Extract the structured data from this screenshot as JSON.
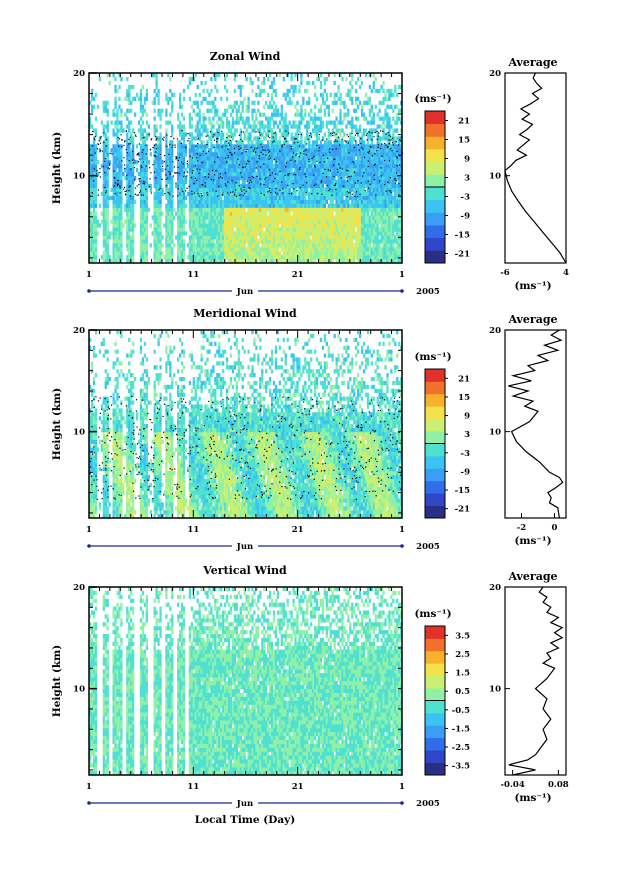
{
  "figure": {
    "xlabel": "Local Time (Day)",
    "month_label": "Jun",
    "year_label": "2005",
    "x_ticks": [
      "1",
      "11",
      "21",
      "1"
    ],
    "colorbar_unit": "(ms⁻¹)",
    "avg_unit": "(ms⁻¹)",
    "avg_title": "Average",
    "ylabel": "Height (km)"
  },
  "chart_data": [
    {
      "type": "heatmap",
      "title": "Zonal Wind",
      "ylabel": "Height (km)",
      "xlabel": "Jun",
      "xlim": [
        1,
        31
      ],
      "ylim": [
        1.5,
        20
      ],
      "y_ticks": [
        "10",
        "20"
      ],
      "colorbar": {
        "unit": "(ms⁻¹)",
        "range": [
          -24,
          24
        ],
        "ticks": [
          "21",
          "15",
          "9",
          "3",
          "-3",
          "-9",
          "-15",
          "-21"
        ]
      },
      "colors": [
        "#2a2f86",
        "#3046c8",
        "#2f6ee6",
        "#3a9ef5",
        "#39c4f2",
        "#4fe0d2",
        "#8ff0a8",
        "#c9f070",
        "#f3e34a",
        "#f8b12c",
        "#f0722a",
        "#e0322a"
      ],
      "profile": {
        "title": "Average",
        "xlim": [
          -6,
          4
        ],
        "x_ticks": [
          "-6",
          "4"
        ],
        "unit": "(ms⁻¹)",
        "heights": [
          1.5,
          2.5,
          3.5,
          4.5,
          5.5,
          6.5,
          7.5,
          8.5,
          9.5,
          10.5,
          11.0,
          11.5,
          12.0,
          12.5,
          13.0,
          13.5,
          14.0,
          14.5,
          15.0,
          15.5,
          16.0,
          16.5,
          17.0,
          17.5,
          18.0,
          18.5,
          19.0,
          19.5,
          20.0
        ],
        "values": [
          4.0,
          3.0,
          1.6,
          0.2,
          -1.2,
          -2.6,
          -3.8,
          -4.9,
          -5.6,
          -6.0,
          -5.0,
          -4.2,
          -2.5,
          -4.0,
          -3.0,
          -2.0,
          -3.6,
          -2.4,
          -1.5,
          -3.2,
          -2.0,
          -3.4,
          -1.8,
          -0.5,
          -1.5,
          0.0,
          -0.8,
          -1.4,
          -1.0
        ]
      }
    },
    {
      "type": "heatmap",
      "title": "Meridional Wind",
      "ylabel": "Height (km)",
      "xlabel": "Jun",
      "xlim": [
        1,
        31
      ],
      "ylim": [
        1.5,
        20
      ],
      "y_ticks": [
        "10",
        "20"
      ],
      "colorbar": {
        "unit": "(ms⁻¹)",
        "range": [
          -24,
          24
        ],
        "ticks": [
          "21",
          "15",
          "9",
          "3",
          "-3",
          "-9",
          "-15",
          "-21"
        ]
      },
      "colors": [
        "#2a2f86",
        "#3046c8",
        "#2f6ee6",
        "#3a9ef5",
        "#39c4f2",
        "#4fe0d2",
        "#8ff0a8",
        "#c9f070",
        "#f3e34a",
        "#f8b12c",
        "#f0722a",
        "#e0322a"
      ],
      "profile": {
        "title": "Average",
        "xlim": [
          -3,
          0.7
        ],
        "x_ticks": [
          "-2",
          "0"
        ],
        "unit": "(ms⁻¹)",
        "heights": [
          1.5,
          2.5,
          3.0,
          3.5,
          4.0,
          4.5,
          5.0,
          5.5,
          6.0,
          7.0,
          8.0,
          9.0,
          10.0,
          11.0,
          12.0,
          12.5,
          13.0,
          13.5,
          14.0,
          14.5,
          15.0,
          15.5,
          16.0,
          16.5,
          17.0,
          17.5,
          18.0,
          18.5,
          19.0,
          19.5,
          20.0
        ],
        "values": [
          0.3,
          0.2,
          -0.3,
          -0.2,
          -0.4,
          0.1,
          0.5,
          0.3,
          -0.3,
          -0.9,
          -1.7,
          -2.3,
          -2.6,
          -1.5,
          -1.0,
          -1.8,
          -1.3,
          -2.5,
          -1.6,
          -2.8,
          -1.4,
          -2.5,
          -1.2,
          -1.6,
          -0.4,
          -1.0,
          0.2,
          -0.6,
          0.4,
          -0.2,
          0.3
        ]
      }
    },
    {
      "type": "heatmap",
      "title": "Vertical Wind",
      "ylabel": "Height (km)",
      "xlabel": "Jun",
      "xlim": [
        1,
        31
      ],
      "ylim": [
        1.5,
        20
      ],
      "y_ticks": [
        "10",
        "20"
      ],
      "colorbar": {
        "unit": "(ms⁻¹)",
        "range": [
          -4,
          4
        ],
        "ticks": [
          "3.5",
          "2.5",
          "1.5",
          "0.5",
          "-0.5",
          "-1.5",
          "-2.5",
          "-3.5"
        ]
      },
      "colors": [
        "#2a2f86",
        "#3046c8",
        "#2f6ee6",
        "#3a9ef5",
        "#39c4f2",
        "#4fe0d2",
        "#8ff0a8",
        "#c9f070",
        "#f3e34a",
        "#f8b12c",
        "#f0722a",
        "#e0322a"
      ],
      "profile": {
        "title": "Average",
        "xlim": [
          -0.06,
          0.1
        ],
        "x_ticks": [
          "-0.04",
          "0.08"
        ],
        "unit": "(ms⁻¹)",
        "heights": [
          1.5,
          2.0,
          2.5,
          3.0,
          3.5,
          4.0,
          5.0,
          6.0,
          7.0,
          8.0,
          9.0,
          10.0,
          11.0,
          12.0,
          12.5,
          13.0,
          13.5,
          14.0,
          14.5,
          15.0,
          15.5,
          16.0,
          16.5,
          17.0,
          17.5,
          18.0,
          18.5,
          19.0,
          19.5,
          20.0
        ],
        "values": [
          -0.04,
          0.02,
          -0.05,
          0.0,
          0.02,
          0.03,
          0.05,
          0.04,
          0.06,
          0.04,
          0.05,
          0.02,
          0.05,
          0.07,
          0.04,
          0.06,
          0.05,
          0.08,
          0.06,
          0.09,
          0.07,
          0.09,
          0.06,
          0.08,
          0.05,
          0.06,
          0.04,
          0.05,
          0.03,
          0.04
        ]
      }
    }
  ]
}
